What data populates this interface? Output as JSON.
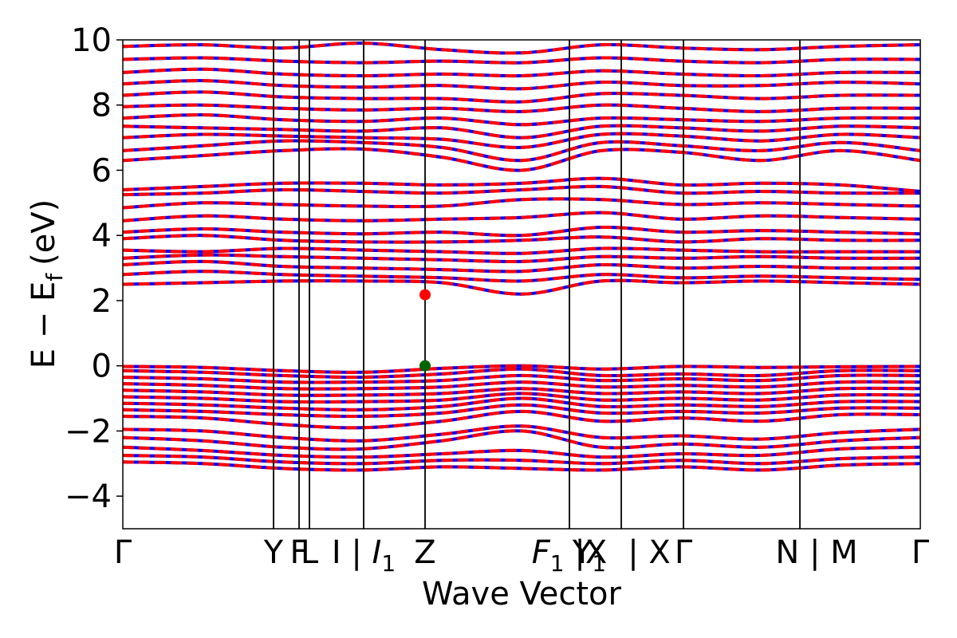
{
  "chart_data": {
    "type": "line",
    "title": "",
    "xlabel": "Wave Vector",
    "ylabel_main": "E − E",
    "ylabel_sub": "f",
    "ylabel_unit": "(eV)",
    "ylim": [
      -5,
      10
    ],
    "xlim": [
      0,
      1
    ],
    "grid": false,
    "legend": "none",
    "yticks": [
      -4,
      -2,
      0,
      2,
      4,
      6,
      8,
      10
    ],
    "ytick_labels": [
      "−4",
      "−2",
      "0",
      "2",
      "4",
      "6",
      "8",
      "10"
    ],
    "kpath_lines": [
      0.189,
      0.221,
      0.234,
      0.302,
      0.379,
      0.56,
      0.625,
      0.703,
      0.849
    ],
    "xtick_labels": [
      {
        "text": "Γ",
        "x": 0.0
      },
      {
        "text": "Y",
        "x": 0.189
      },
      {
        "text": "F",
        "x": 0.221
      },
      {
        "text": "L",
        "x": 0.234
      },
      {
        "text": "I | ",
        "x": 0.302,
        "italic": "I",
        "sub": "1"
      },
      {
        "text": "Z",
        "x": 0.379
      },
      {
        "text": "",
        "x": 0.56,
        "italic": "F",
        "sub": "1",
        "suffix": " |X"
      },
      {
        "text": "Y",
        "x": 0.585,
        "sub": "1"
      },
      {
        "text": " | X",
        "x": 0.66
      },
      {
        "text": "Γ",
        "x": 0.703
      },
      {
        "text": "N | M",
        "x": 0.87
      },
      {
        "text": "Γ",
        "x": 1.0
      }
    ],
    "series_colors": {
      "spin_up": "#ff0000",
      "spin_down": "#0000ff"
    },
    "band_extrema": {
      "cbm": {
        "x": 0.379,
        "y": 2.18,
        "color": "#ff0000"
      },
      "vbm": {
        "x": 0.379,
        "y": 0.0,
        "color": "#006400"
      }
    },
    "bands": [
      {
        "y": [
          -2.95,
          -3.0,
          -3.15,
          -3.2,
          -3.1,
          -3.15,
          -3.2,
          -3.1,
          -3.2,
          -3.05,
          -3.0
        ]
      },
      {
        "y": [
          -2.75,
          -2.8,
          -2.95,
          -3.0,
          -2.9,
          -2.9,
          -3.0,
          -2.9,
          -3.0,
          -2.85,
          -2.8
        ]
      },
      {
        "y": [
          -2.5,
          -2.6,
          -2.75,
          -2.8,
          -2.7,
          -2.6,
          -2.8,
          -2.7,
          -2.75,
          -2.55,
          -2.5
        ]
      },
      {
        "y": [
          -2.2,
          -2.3,
          -2.5,
          -2.55,
          -2.3,
          -2.0,
          -2.5,
          -2.4,
          -2.5,
          -2.3,
          -2.2
        ]
      },
      {
        "y": [
          -1.95,
          -2.0,
          -2.2,
          -2.3,
          -2.1,
          -1.85,
          -2.2,
          -2.15,
          -2.25,
          -2.05,
          -1.95
        ]
      },
      {
        "y": [
          -1.55,
          -1.6,
          -1.8,
          -1.9,
          -1.7,
          -1.4,
          -1.7,
          -1.6,
          -1.7,
          -1.5,
          -1.5
        ]
      },
      {
        "y": [
          -1.35,
          -1.4,
          -1.5,
          -1.55,
          -1.45,
          -1.2,
          -1.45,
          -1.4,
          -1.45,
          -1.3,
          -1.3
        ]
      },
      {
        "y": [
          -1.15,
          -1.2,
          -1.3,
          -1.35,
          -1.25,
          -1.0,
          -1.25,
          -1.2,
          -1.25,
          -1.1,
          -1.1
        ]
      },
      {
        "y": [
          -0.95,
          -1.0,
          -1.1,
          -1.1,
          -1.05,
          -0.85,
          -1.05,
          -1.0,
          -1.05,
          -0.9,
          -0.9
        ]
      },
      {
        "y": [
          -0.75,
          -0.8,
          -0.9,
          -0.9,
          -0.85,
          -0.7,
          -0.85,
          -0.8,
          -0.85,
          -0.7,
          -0.7
        ]
      },
      {
        "y": [
          -0.55,
          -0.6,
          -0.7,
          -0.7,
          -0.65,
          -0.5,
          -0.65,
          -0.6,
          -0.65,
          -0.5,
          -0.5
        ]
      },
      {
        "y": [
          -0.35,
          -0.4,
          -0.5,
          -0.5,
          -0.45,
          -0.3,
          -0.45,
          -0.4,
          -0.45,
          -0.3,
          -0.3
        ]
      },
      {
        "y": [
          -0.15,
          -0.2,
          -0.3,
          -0.35,
          -0.25,
          -0.1,
          -0.3,
          -0.25,
          -0.3,
          -0.15,
          -0.15
        ]
      },
      {
        "y": [
          -0.02,
          -0.05,
          -0.15,
          -0.2,
          -0.08,
          0.0,
          -0.1,
          -0.02,
          -0.05,
          -0.03,
          -0.02
        ]
      },
      {
        "y": [
          2.5,
          2.55,
          2.6,
          2.6,
          2.55,
          2.2,
          2.6,
          2.55,
          2.6,
          2.55,
          2.5
        ]
      },
      {
        "y": [
          2.8,
          2.9,
          2.8,
          2.75,
          2.7,
          2.6,
          2.8,
          2.7,
          2.75,
          2.7,
          2.65
        ]
      },
      {
        "y": [
          3.1,
          3.2,
          3.05,
          3.0,
          2.95,
          2.9,
          3.1,
          3.0,
          3.05,
          3.0,
          3.0
        ]
      },
      {
        "y": [
          3.3,
          3.4,
          3.35,
          3.3,
          3.25,
          3.2,
          3.35,
          3.3,
          3.35,
          3.3,
          3.3
        ]
      },
      {
        "y": [
          3.55,
          3.5,
          3.6,
          3.55,
          3.5,
          3.45,
          3.6,
          3.55,
          3.5,
          3.5,
          3.5
        ]
      },
      {
        "y": [
          3.9,
          4.0,
          3.85,
          3.8,
          3.8,
          3.85,
          3.95,
          3.8,
          3.9,
          3.85,
          3.85
        ]
      },
      {
        "y": [
          4.1,
          4.2,
          4.1,
          4.05,
          4.1,
          4.0,
          4.25,
          4.1,
          4.15,
          4.1,
          4.05
        ]
      },
      {
        "y": [
          4.45,
          4.6,
          4.5,
          4.45,
          4.5,
          4.55,
          4.7,
          4.5,
          4.6,
          4.55,
          4.5
        ]
      },
      {
        "y": [
          4.85,
          5.0,
          4.95,
          4.9,
          4.9,
          5.1,
          5.1,
          4.95,
          5.0,
          4.95,
          4.9
        ]
      },
      {
        "y": [
          5.25,
          5.3,
          5.4,
          5.35,
          5.3,
          5.4,
          5.5,
          5.3,
          5.35,
          5.3,
          5.3
        ]
      },
      {
        "y": [
          5.4,
          5.5,
          5.6,
          5.6,
          5.55,
          5.6,
          5.75,
          5.55,
          5.6,
          5.55,
          5.35
        ]
      },
      {
        "y": [
          6.3,
          6.45,
          6.6,
          6.65,
          6.4,
          6.0,
          6.6,
          6.55,
          6.3,
          6.6,
          6.3
        ]
      },
      {
        "y": [
          6.6,
          6.75,
          6.9,
          6.85,
          6.7,
          6.3,
          6.85,
          6.75,
          6.6,
          6.85,
          6.6
        ]
      },
      {
        "y": [
          7.0,
          7.1,
          7.05,
          7.0,
          6.95,
          6.7,
          7.1,
          7.05,
          6.9,
          7.1,
          7.0
        ]
      },
      {
        "y": [
          7.35,
          7.3,
          7.25,
          7.2,
          7.3,
          7.0,
          7.35,
          7.3,
          7.2,
          7.35,
          7.3
        ]
      },
      {
        "y": [
          7.6,
          7.7,
          7.55,
          7.5,
          7.6,
          7.4,
          7.6,
          7.55,
          7.5,
          7.6,
          7.6
        ]
      },
      {
        "y": [
          7.95,
          8.0,
          7.9,
          7.85,
          7.9,
          7.8,
          8.0,
          7.9,
          7.8,
          7.9,
          7.9
        ]
      },
      {
        "y": [
          8.3,
          8.4,
          8.25,
          8.2,
          8.2,
          8.1,
          8.35,
          8.3,
          8.2,
          8.3,
          8.3
        ]
      },
      {
        "y": [
          8.65,
          8.75,
          8.6,
          8.55,
          8.6,
          8.5,
          8.7,
          8.6,
          8.6,
          8.7,
          8.65
        ]
      },
      {
        "y": [
          9.0,
          9.1,
          8.95,
          8.9,
          8.95,
          8.9,
          9.05,
          8.95,
          8.9,
          9.0,
          9.0
        ]
      },
      {
        "y": [
          9.4,
          9.45,
          9.35,
          9.3,
          9.35,
          9.3,
          9.45,
          9.35,
          9.3,
          9.4,
          9.4
        ]
      },
      {
        "y": [
          9.8,
          9.85,
          9.75,
          9.9,
          9.7,
          9.6,
          9.85,
          9.75,
          9.7,
          9.8,
          9.85
        ]
      }
    ]
  }
}
